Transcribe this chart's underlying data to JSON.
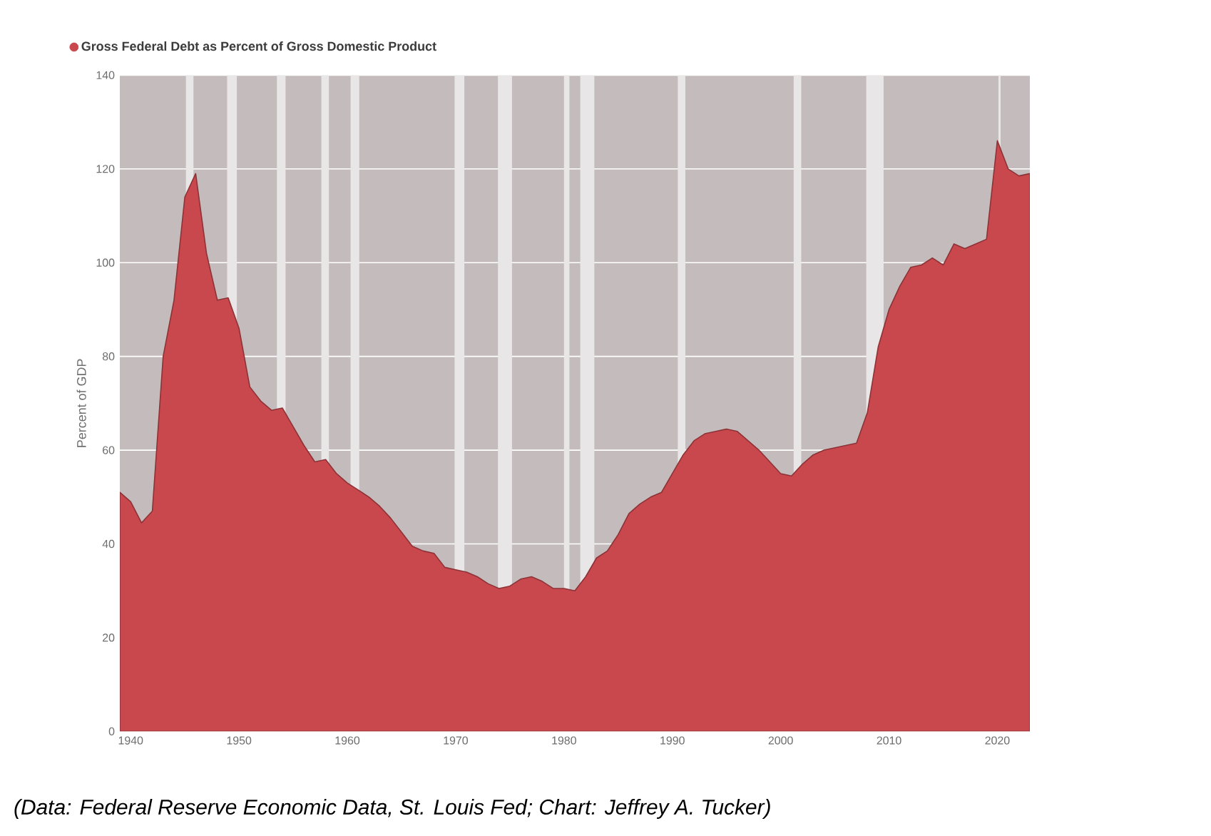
{
  "chart_data": {
    "type": "area",
    "ylabel": "Percent of GDP",
    "legend": "top left",
    "grid": "y",
    "xlim": [
      1939,
      2023
    ],
    "xticks": [
      1940,
      1950,
      1960,
      1970,
      1980,
      1990,
      2000,
      2010,
      2020
    ],
    "ylim": [
      0,
      140
    ],
    "yticks": [
      0,
      20,
      40,
      60,
      80,
      100,
      120,
      140
    ],
    "x": [
      1939,
      1940,
      1941,
      1942,
      1943,
      1944,
      1945,
      1946,
      1947,
      1948,
      1949,
      1950,
      1951,
      1952,
      1953,
      1954,
      1955,
      1956,
      1957,
      1958,
      1959,
      1960,
      1961,
      1962,
      1963,
      1964,
      1965,
      1966,
      1967,
      1968,
      1969,
      1970,
      1971,
      1972,
      1973,
      1974,
      1975,
      1976,
      1977,
      1978,
      1979,
      1980,
      1981,
      1982,
      1983,
      1984,
      1985,
      1986,
      1987,
      1988,
      1989,
      1990,
      1991,
      1992,
      1993,
      1994,
      1995,
      1996,
      1997,
      1998,
      1999,
      2000,
      2001,
      2002,
      2003,
      2004,
      2005,
      2006,
      2007,
      2008,
      2009,
      2010,
      2011,
      2012,
      2013,
      2014,
      2015,
      2016,
      2017,
      2018,
      2019,
      2020,
      2021,
      2022,
      2023
    ],
    "series": [
      {
        "name": "Gross Federal Debt as Percent of Gross Domestic Product",
        "color": "#c9484d",
        "values": [
          51,
          49,
          44.5,
          47,
          80,
          92,
          114,
          119,
          102,
          92,
          92.5,
          86,
          73.5,
          70.5,
          68.5,
          69,
          65,
          61,
          57.5,
          58,
          55,
          53,
          51.5,
          50,
          48,
          45.5,
          42.5,
          39.5,
          38.5,
          38,
          35,
          34.5,
          34,
          33,
          31.5,
          30.5,
          31,
          32.5,
          33,
          32,
          30.5,
          30.5,
          30,
          33,
          37,
          38.5,
          42,
          46.5,
          48.5,
          50,
          51,
          55,
          59,
          62,
          63.5,
          64,
          64.5,
          64,
          62,
          60,
          57.5,
          55,
          54.5,
          57,
          59,
          60,
          60.5,
          61,
          61.5,
          68,
          82,
          90,
          95,
          99,
          99.5,
          101,
          99.5,
          104,
          103,
          104,
          105,
          126,
          120,
          118.5,
          119
        ]
      }
    ],
    "bands": [
      {
        "axis": "x",
        "from": 1945.1,
        "to": 1945.8,
        "color": "#e8e6e6"
      },
      {
        "axis": "x",
        "from": 1948.9,
        "to": 1949.8,
        "color": "#e8e6e6"
      },
      {
        "axis": "x",
        "from": 1953.5,
        "to": 1954.3,
        "color": "#e8e6e6"
      },
      {
        "axis": "x",
        "from": 1957.6,
        "to": 1958.3,
        "color": "#e8e6e6"
      },
      {
        "axis": "x",
        "from": 1960.3,
        "to": 1961.1,
        "color": "#e8e6e6"
      },
      {
        "axis": "x",
        "from": 1969.9,
        "to": 1970.8,
        "color": "#e8e6e6"
      },
      {
        "axis": "x",
        "from": 1973.9,
        "to": 1975.2,
        "color": "#e8e6e6"
      },
      {
        "axis": "x",
        "from": 1980.0,
        "to": 1980.5,
        "color": "#e8e6e6"
      },
      {
        "axis": "x",
        "from": 1981.5,
        "to": 1982.8,
        "color": "#e8e6e6"
      },
      {
        "axis": "x",
        "from": 1990.5,
        "to": 1991.2,
        "color": "#e8e6e6"
      },
      {
        "axis": "x",
        "from": 2001.2,
        "to": 2001.9,
        "color": "#e8e6e6"
      },
      {
        "axis": "x",
        "from": 2007.9,
        "to": 2009.5,
        "color": "#e8e6e6"
      },
      {
        "axis": "x",
        "from": 2020.1,
        "to": 2020.3,
        "color": "#e8e6e6"
      }
    ],
    "annotations": [
      "(Data: Federal Reserve Economic Data, St. Louis Fed; Chart: Jeffrey A. Tucker)"
    ]
  }
}
